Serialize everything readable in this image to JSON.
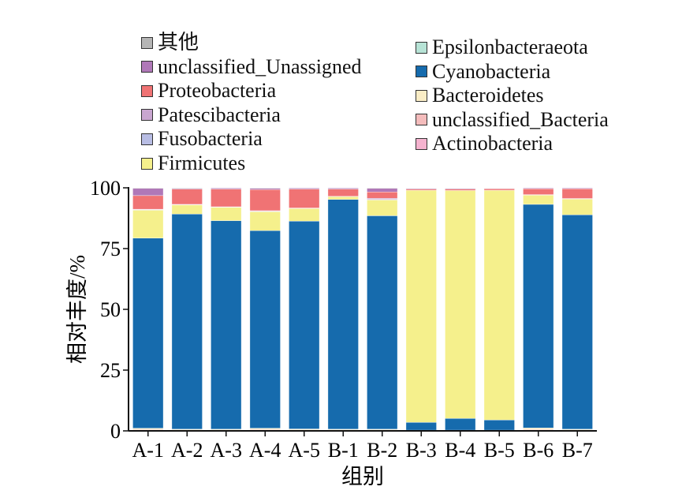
{
  "chart_data": {
    "type": "bar",
    "stacked": true,
    "xlabel": "组别",
    "ylabel": "相对丰度/%",
    "ylim": [
      0,
      100
    ],
    "yticks": [
      0,
      25,
      50,
      75,
      100
    ],
    "categories": [
      "A-1",
      "A-2",
      "A-3",
      "A-4",
      "A-5",
      "B-1",
      "B-2",
      "B-3",
      "B-4",
      "B-5",
      "B-6",
      "B-7"
    ],
    "series": [
      {
        "name": "Actinobacteria",
        "color": "#f5b3cf",
        "values": [
          0.3,
          0.2,
          0.2,
          0.3,
          0.2,
          0.2,
          0.2,
          0.1,
          0.1,
          0.1,
          0.3,
          0.2
        ]
      },
      {
        "name": "unclassified_Bacteria",
        "color": "#f4bcbc",
        "values": [
          0.3,
          0.2,
          0.2,
          0.3,
          0.2,
          0.2,
          0.2,
          0.1,
          0.1,
          0.1,
          0.3,
          0.2
        ]
      },
      {
        "name": "Bacteroidetes",
        "color": "#faedc6",
        "values": [
          0.5,
          0.3,
          0.3,
          0.5,
          0.4,
          0.3,
          0.3,
          0.1,
          0.1,
          0.1,
          0.6,
          0.3
        ]
      },
      {
        "name": "Cyanobacteria",
        "color": "#166bad",
        "values": [
          78.2,
          88.5,
          85.8,
          81.3,
          85.5,
          94.5,
          87.8,
          3.2,
          4.8,
          4.2,
          92.0,
          88.2
        ]
      },
      {
        "name": "Epsilonbacteraeota",
        "color": "#b7e3d6",
        "values": [
          0,
          0,
          0,
          0,
          0,
          0,
          0,
          0,
          0,
          0,
          0,
          0
        ]
      },
      {
        "name": "Firmicutes",
        "color": "#f5f08c",
        "values": [
          11.5,
          3.8,
          5.5,
          7.8,
          5.2,
          1.2,
          6.5,
          95.5,
          93.8,
          94.5,
          3.8,
          6.5
        ]
      },
      {
        "name": "Fusobacteria",
        "color": "#b8bde4",
        "values": [
          0.2,
          0.1,
          0.1,
          0.2,
          0.1,
          0,
          0.2,
          0,
          0,
          0,
          0.1,
          0.1
        ]
      },
      {
        "name": "Patescibacteria",
        "color": "#c9a6d0",
        "values": [
          0.2,
          0.1,
          0.1,
          0.2,
          0.1,
          0.1,
          0.5,
          0,
          0,
          0,
          0.1,
          0.1
        ]
      },
      {
        "name": "Proteobacteria",
        "color": "#f07374",
        "values": [
          5.6,
          6.3,
          7.3,
          8.7,
          7.8,
          3.0,
          2.6,
          0.5,
          0.6,
          0.6,
          2.4,
          4.0
        ]
      },
      {
        "name": "unclassified_Unassigned",
        "color": "#b078b8",
        "values": [
          3.0,
          0.3,
          0.4,
          0.5,
          0.4,
          0.4,
          1.5,
          0.3,
          0.3,
          0.2,
          0.3,
          0.3
        ]
      },
      {
        "name": "其他",
        "color": "#b5b5b5",
        "values": [
          0.2,
          0.2,
          0.1,
          0.2,
          0.1,
          0.1,
          0.2,
          0.1,
          0.1,
          0.1,
          0.1,
          0.1
        ]
      }
    ],
    "legend": {
      "placement": "top",
      "col1": [
        "其他",
        "unclassified_Unassigned",
        "Proteobacteria",
        "Patescibacteria",
        "Fusobacteria",
        "Firmicutes"
      ],
      "col2": [
        "Epsilonbacteraeota",
        "Cyanobacteria",
        "Bacteroidetes",
        "unclassified_Bacteria",
        "Actinobacteria"
      ]
    }
  }
}
